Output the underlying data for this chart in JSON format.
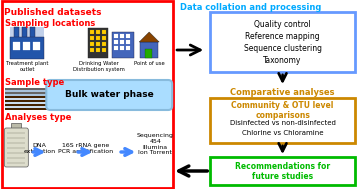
{
  "bg_color": "#ffffff",
  "left_border_color": "#ff0000",
  "right_title_color": "#00aaff",
  "section_header_color": "#ff0000",
  "blue_box_edgecolor": "#6699ff",
  "gold_box_edgecolor": "#cc8800",
  "gold_text_color": "#cc8800",
  "green_box_edgecolor": "#00bb00",
  "green_text_color": "#00bb00",
  "light_blue_bubble": "#aaddff",
  "bubble_edge": "#88bbdd",
  "published_title": "Published datasets",
  "right_title": "Data collation and processing",
  "sampling_label": "Sampling locations",
  "sample_type_label": "Sample type",
  "analyses_label": "Analyses type",
  "treatment_plant": "Treatment plant\noutlet",
  "drinking_water": "Drinking Water\nDistribution system",
  "point_of_use": "Point of use",
  "bulk_water": "Bulk water phase",
  "comp_analyses": "Comparative analyses",
  "community_otu": "Community & OTU level\ncomparisons",
  "disinfected": "Disinfected vs non-disinfected",
  "chlorine": "Chlorine vs Chloramine",
  "recommendations": "Recommendations for\nfuture studies",
  "quality_control": "Quality control",
  "ref_mapping": "Reference mapping",
  "seq_clustering": "Sequence clustering",
  "taxonomy": "Taxonomy",
  "dna_extraction": "DNA\nextraction",
  "rna_gene": "16S rRNA gene\nPCR amplification",
  "sequencing": "Sequencing\n454\nIllumina\nIon Torrent"
}
